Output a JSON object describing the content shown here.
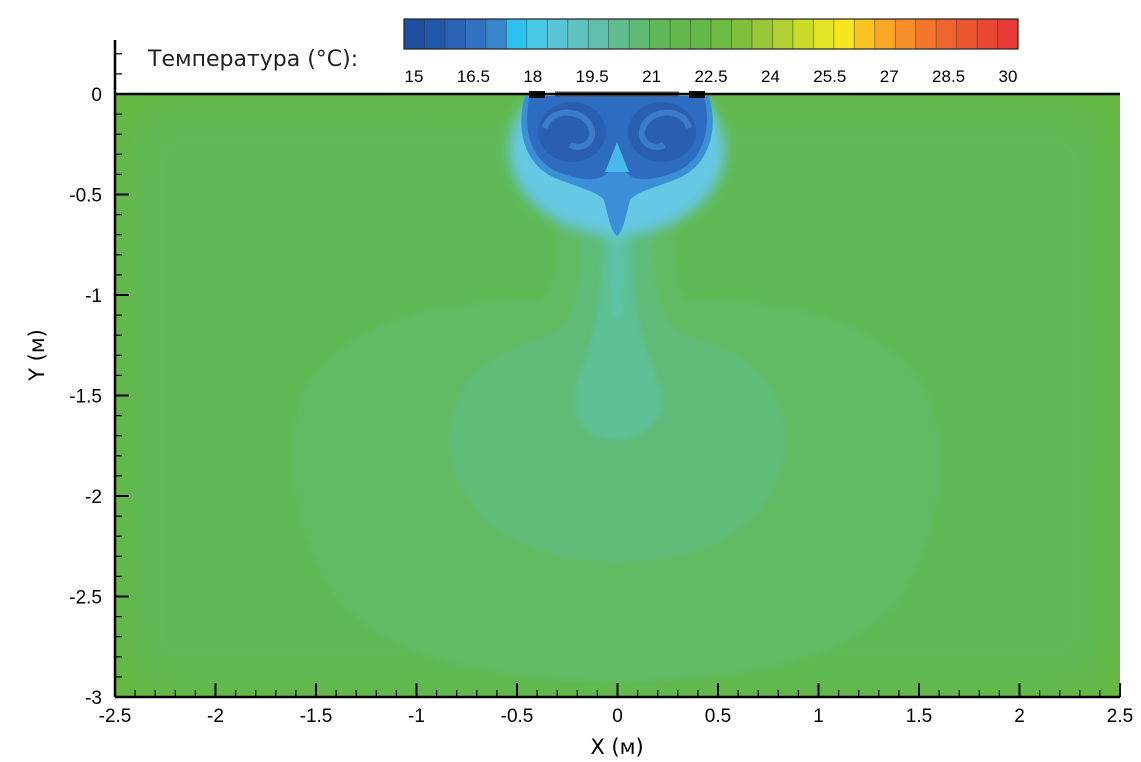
{
  "chart_data": {
    "type": "heatmap",
    "title": "",
    "xlabel": "X (м)",
    "ylabel": "Y (м)",
    "xlim": [
      -2.5,
      2.5
    ],
    "ylim": [
      -3,
      0
    ],
    "x_ticks": [
      -2.5,
      -2,
      -1.5,
      -1,
      -0.5,
      0,
      0.5,
      1,
      1.5,
      2,
      2.5
    ],
    "y_ticks": [
      0,
      -0.5,
      -1,
      -1.5,
      -2,
      -2.5,
      -3
    ],
    "x_tick_labels": [
      "-2.5",
      "-2",
      "-1.5",
      "-1",
      "-0.5",
      "0",
      "0.5",
      "1",
      "1.5",
      "2",
      "2.5"
    ],
    "y_tick_labels": [
      "0",
      "-0.5",
      "-1",
      "-1.5",
      "-2",
      "-2.5",
      "-3"
    ],
    "colorbar": {
      "title": "Температура (°C):",
      "min": 15,
      "max": 30,
      "levels": 31,
      "tick_values": [
        15,
        16.5,
        18,
        19.5,
        21,
        22.5,
        24,
        25.5,
        27,
        28.5,
        30
      ],
      "tick_labels": [
        "15",
        "16.5",
        "18",
        "19.5",
        "21",
        "22.5",
        "24",
        "25.5",
        "27",
        "28.5",
        "30"
      ],
      "colors": [
        "#1f4fa0",
        "#2256a9",
        "#2a62b4",
        "#3271bf",
        "#3a86cc",
        "#2ec0ee",
        "#49c9e6",
        "#5ac5d6",
        "#5fc2c0",
        "#5fbfa8",
        "#5fbc8e",
        "#5fba74",
        "#61b85a",
        "#62b84a",
        "#64b845",
        "#6ebb42",
        "#80bf3c",
        "#97c636",
        "#b0cf30",
        "#cadb2a",
        "#e3e326",
        "#f5e61f",
        "#fbc322",
        "#f9a726",
        "#f58e28",
        "#f2762b",
        "#ef632e",
        "#ed5530",
        "#ea4633",
        "#e83a35"
      ]
    },
    "field": {
      "background_temperature_c": 23.2,
      "jet_core_min_temperature_c": 15.8
    }
  }
}
